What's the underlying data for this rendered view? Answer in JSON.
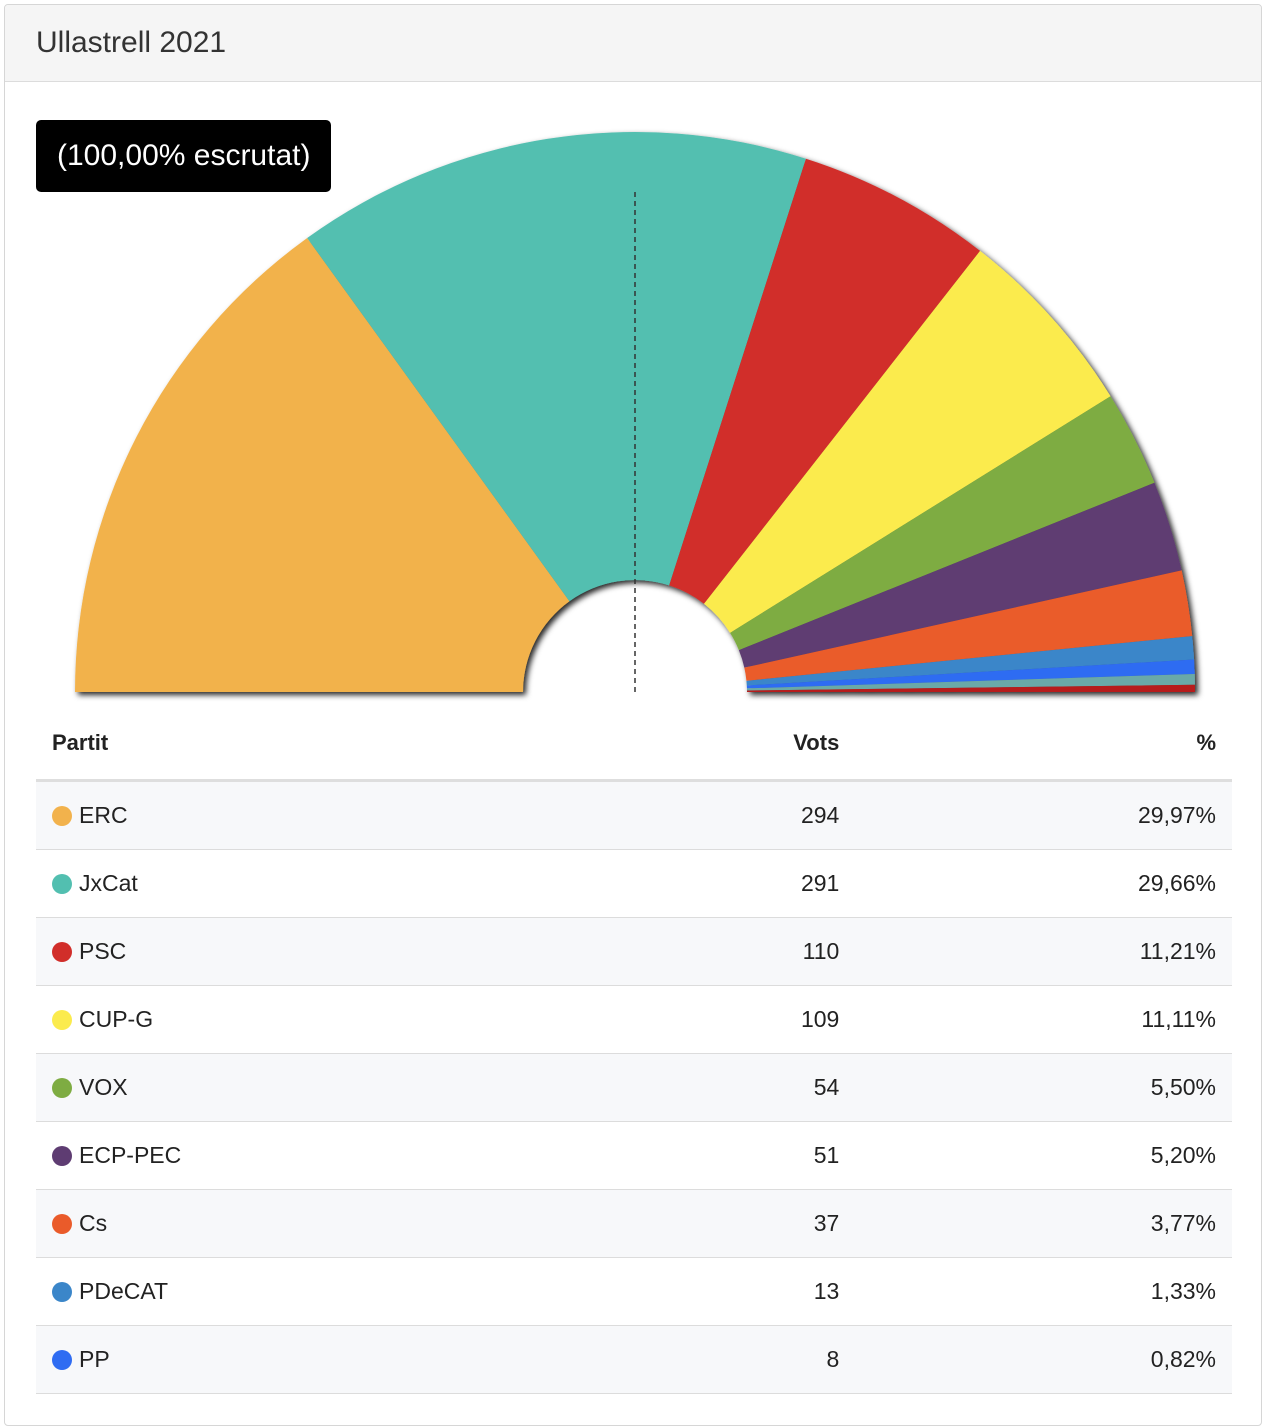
{
  "panel": {
    "title": "Ullastrell 2021"
  },
  "scrutiny_label": "(100,00% escrutat)",
  "table": {
    "headers": {
      "party": "Partit",
      "votes": "Vots",
      "pct": "%"
    },
    "rows": [
      {
        "party": "ERC",
        "votes": "294",
        "pct": "29,97%",
        "color": "#f2b24c"
      },
      {
        "party": "JxCat",
        "votes": "291",
        "pct": "29,66%",
        "color": "#52bfb0"
      },
      {
        "party": "PSC",
        "votes": "110",
        "pct": "11,21%",
        "color": "#d12e2a"
      },
      {
        "party": "CUP-G",
        "votes": "109",
        "pct": "11,11%",
        "color": "#fbeb4d"
      },
      {
        "party": "VOX",
        "votes": "54",
        "pct": "5,50%",
        "color": "#7eac42"
      },
      {
        "party": "ECP-PEC",
        "votes": "51",
        "pct": "5,20%",
        "color": "#5e3c72"
      },
      {
        "party": "Cs",
        "votes": "37",
        "pct": "3,77%",
        "color": "#ea5b2a"
      },
      {
        "party": "PDeCAT",
        "votes": "13",
        "pct": "1,33%",
        "color": "#3b86c9"
      },
      {
        "party": "PP",
        "votes": "8",
        "pct": "0,82%",
        "color": "#2f6cf2"
      }
    ]
  },
  "chart_data": {
    "type": "pie",
    "shape": "half-donut",
    "categories": [
      "ERC",
      "JxCat",
      "PSC",
      "CUP-G",
      "VOX",
      "ECP-PEC",
      "Cs",
      "PDeCAT",
      "PP",
      "",
      ""
    ],
    "values": [
      29.97,
      29.66,
      11.21,
      11.11,
      5.5,
      5.2,
      3.77,
      1.33,
      0.82,
      0.61,
      0.41
    ],
    "colors": [
      "#f2b24c",
      "#52bfb0",
      "#d12e2a",
      "#fbeb4d",
      "#7eac42",
      "#5e3c72",
      "#ea5b2a",
      "#3b86c9",
      "#2f6cf2",
      "#6aa9a8",
      "#b71c1c"
    ],
    "majority_line": true
  }
}
